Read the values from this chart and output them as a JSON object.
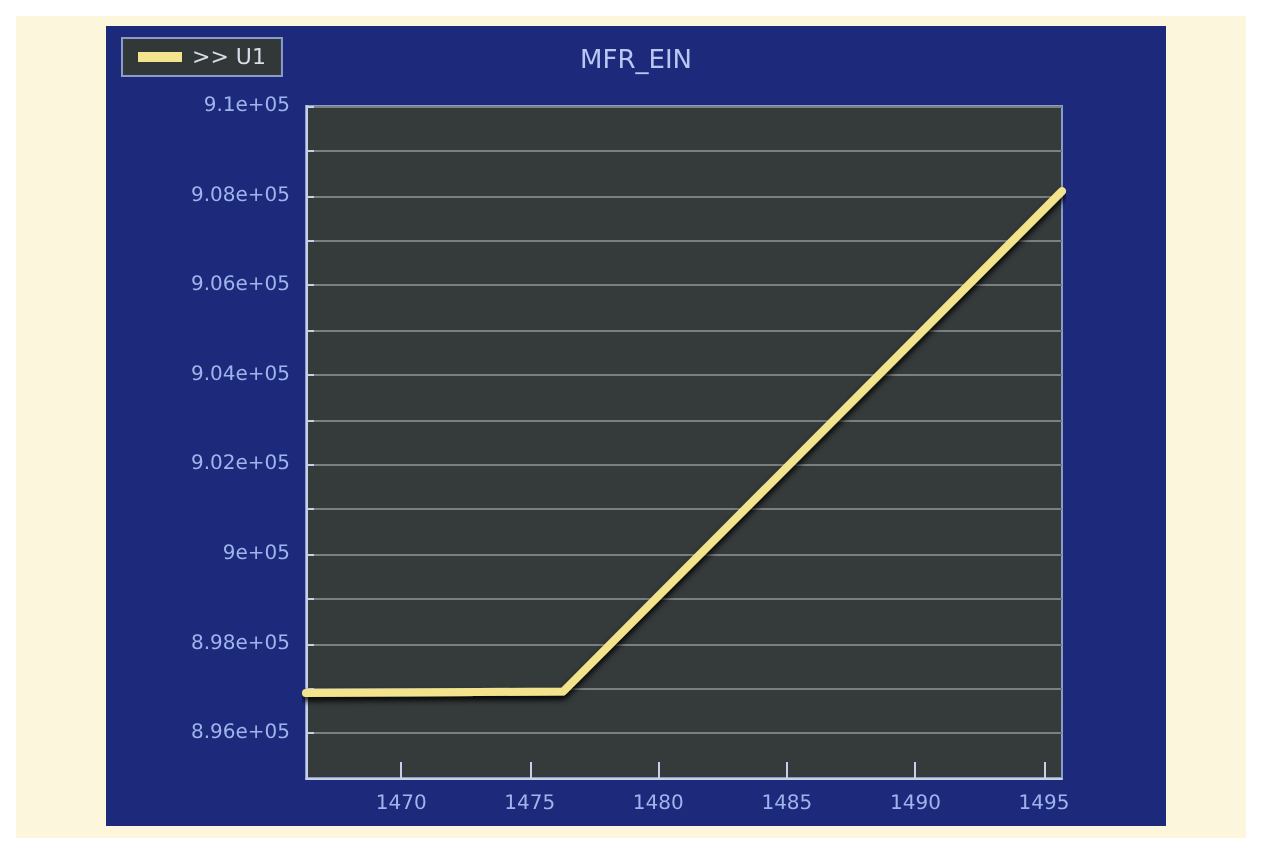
{
  "chart_data": {
    "type": "line",
    "title": "MFR_EIN",
    "x": [
      1466.3,
      1476.3,
      1495.7
    ],
    "series": [
      {
        "name": ">> U1",
        "color": "#f2e38c",
        "values": [
          896900,
          896930,
          908100
        ]
      }
    ],
    "xlim": [
      1466.3,
      1495.7
    ],
    "xticks": [
      1470,
      1475,
      1480,
      1485,
      1490,
      1495
    ],
    "ylim": [
      895000,
      910000
    ],
    "yticks": [
      {
        "value": 895000,
        "label": null
      },
      {
        "value": 896000,
        "label": "8.96e+05"
      },
      {
        "value": 897000,
        "label": null
      },
      {
        "value": 898000,
        "label": "8.98e+05"
      },
      {
        "value": 899000,
        "label": null
      },
      {
        "value": 900000,
        "label": "9e+05"
      },
      {
        "value": 901000,
        "label": null
      },
      {
        "value": 902000,
        "label": "9.02e+05"
      },
      {
        "value": 903000,
        "label": null
      },
      {
        "value": 904000,
        "label": "9.04e+05"
      },
      {
        "value": 905000,
        "label": null
      },
      {
        "value": 906000,
        "label": "9.06e+05"
      },
      {
        "value": 907000,
        "label": null
      },
      {
        "value": 908000,
        "label": "9.08e+05"
      },
      {
        "value": 909000,
        "label": null
      },
      {
        "value": 910000,
        "label": "9.1e+05"
      }
    ],
    "grid": "y",
    "legend": "top left",
    "marker": "none",
    "line_style": "solid"
  }
}
